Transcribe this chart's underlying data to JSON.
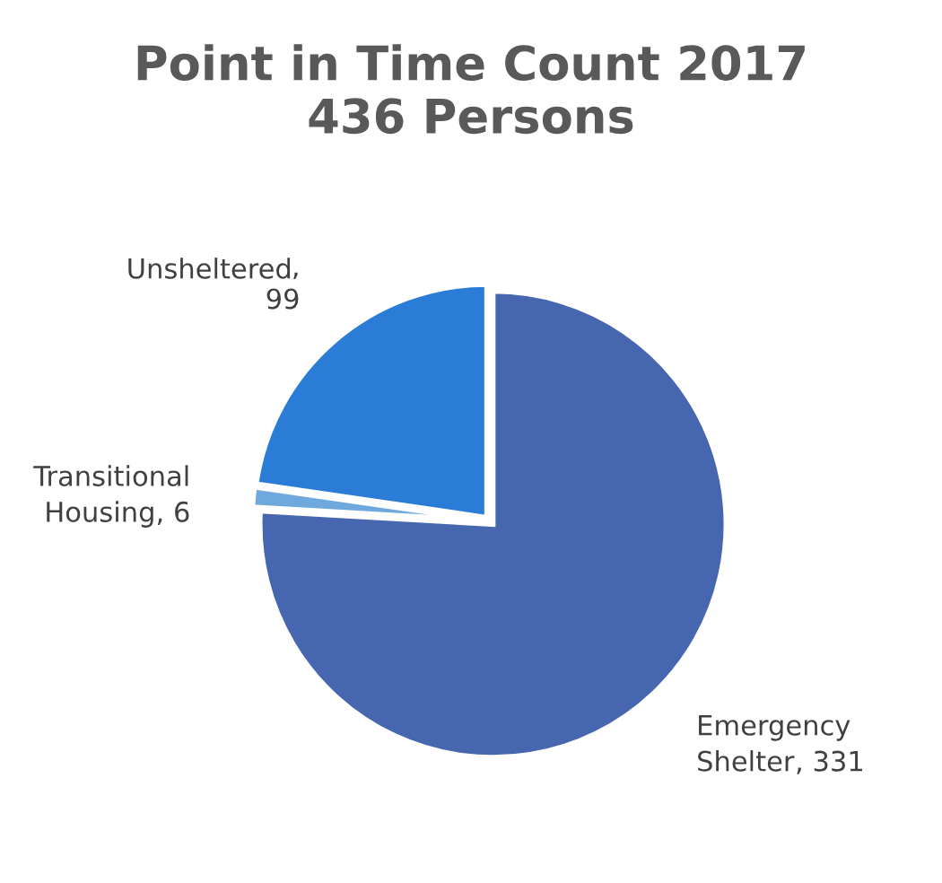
{
  "chart_data": {
    "type": "pie",
    "title": "Point in Time Count 2017\n436 Persons",
    "categories": [
      "Emergency Shelter",
      "Transitional Housing",
      "Unsheltered"
    ],
    "values": [
      331,
      6,
      99
    ],
    "colors": [
      "#4666b0",
      "#6fa8dc",
      "#2b7cd6"
    ],
    "value_labels": [
      ", 331",
      ", 6",
      ", 99"
    ],
    "legend": false
  }
}
